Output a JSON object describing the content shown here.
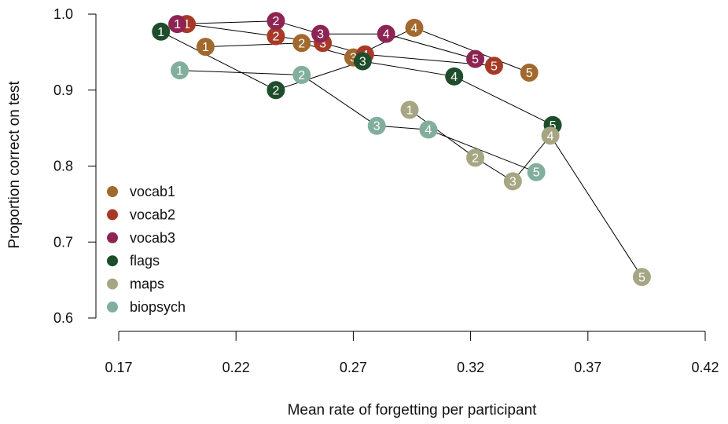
{
  "chart_data": {
    "type": "scatter",
    "title": "",
    "xlabel": "Mean rate of forgetting per participant",
    "ylabel": "Proportion correct on test",
    "xlim": [
      0.17,
      0.42
    ],
    "ylim": [
      0.6,
      1.0
    ],
    "x_ticks": [
      "0.17",
      "0.22",
      "0.27",
      "0.32",
      "0.37",
      "0.42"
    ],
    "y_ticks": [
      "0.6",
      "0.7",
      "0.8",
      "0.9",
      "1.0"
    ],
    "grid": false,
    "legend_position": "bottom-left",
    "connect_points": true,
    "series": [
      {
        "name": "vocab1",
        "color": "#A2692E",
        "points": [
          {
            "label": "1",
            "x": 0.207,
            "y": 0.957
          },
          {
            "label": "2",
            "x": 0.248,
            "y": 0.962
          },
          {
            "label": "3",
            "x": 0.27,
            "y": 0.943
          },
          {
            "label": "4",
            "x": 0.296,
            "y": 0.982
          },
          {
            "label": "5",
            "x": 0.345,
            "y": 0.923
          }
        ]
      },
      {
        "name": "vocab2",
        "color": "#A63A26",
        "points": [
          {
            "label": "1",
            "x": 0.199,
            "y": 0.987
          },
          {
            "label": "2",
            "x": 0.237,
            "y": 0.971
          },
          {
            "label": "3",
            "x": 0.257,
            "y": 0.962
          },
          {
            "label": "4",
            "x": 0.275,
            "y": 0.947
          },
          {
            "label": "5",
            "x": 0.33,
            "y": 0.932
          }
        ]
      },
      {
        "name": "vocab3",
        "color": "#8E2453",
        "points": [
          {
            "label": "1",
            "x": 0.195,
            "y": 0.987
          },
          {
            "label": "2",
            "x": 0.237,
            "y": 0.991
          },
          {
            "label": "3",
            "x": 0.256,
            "y": 0.974
          },
          {
            "label": "4",
            "x": 0.284,
            "y": 0.974
          },
          {
            "label": "5",
            "x": 0.322,
            "y": 0.941
          }
        ]
      },
      {
        "name": "flags",
        "color": "#1E4D2B",
        "points": [
          {
            "label": "1",
            "x": 0.188,
            "y": 0.977
          },
          {
            "label": "2",
            "x": 0.237,
            "y": 0.9
          },
          {
            "label": "3",
            "x": 0.274,
            "y": 0.938
          },
          {
            "label": "4",
            "x": 0.313,
            "y": 0.918
          },
          {
            "label": "5",
            "x": 0.355,
            "y": 0.854
          }
        ]
      },
      {
        "name": "maps",
        "color": "#A6A683",
        "points": [
          {
            "label": "1",
            "x": 0.294,
            "y": 0.874
          },
          {
            "label": "2",
            "x": 0.322,
            "y": 0.811
          },
          {
            "label": "3",
            "x": 0.338,
            "y": 0.78
          },
          {
            "label": "4",
            "x": 0.354,
            "y": 0.84
          },
          {
            "label": "5",
            "x": 0.393,
            "y": 0.654
          }
        ]
      },
      {
        "name": "biopsych",
        "color": "#82AF9D",
        "points": [
          {
            "label": "1",
            "x": 0.196,
            "y": 0.926
          },
          {
            "label": "2",
            "x": 0.248,
            "y": 0.92
          },
          {
            "label": "3",
            "x": 0.28,
            "y": 0.853
          },
          {
            "label": "4",
            "x": 0.302,
            "y": 0.848
          },
          {
            "label": "5",
            "x": 0.348,
            "y": 0.792
          }
        ]
      }
    ]
  }
}
